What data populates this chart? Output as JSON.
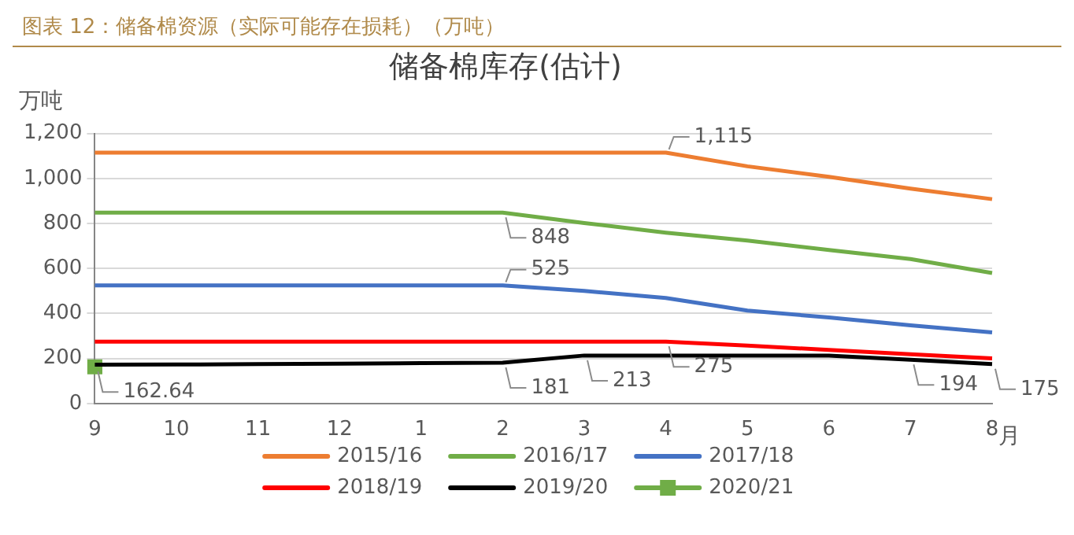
{
  "chart_data": {
    "type": "line",
    "title": "图表 12：储备棉资源（实际可能存在损耗）（万吨）",
    "subtitle": "储备棉库存(估计)",
    "xlabel": "月",
    "ylabel": "万吨",
    "categories": [
      "9",
      "10",
      "11",
      "12",
      "1",
      "2",
      "3",
      "4",
      "5",
      "6",
      "7",
      "8"
    ],
    "series": [
      {
        "name": "2015/16",
        "color": "#ed7d31",
        "values": [
          1115,
          1115,
          1115,
          1115,
          1115,
          1115,
          1115,
          1115,
          1054,
          1007,
          955,
          908
        ],
        "value_labels": [
          null,
          null,
          null,
          null,
          null,
          null,
          null,
          "1,115",
          null,
          null,
          null,
          null
        ]
      },
      {
        "name": "2016/17",
        "color": "#70ad47",
        "values": [
          848,
          848,
          848,
          848,
          848,
          848,
          802,
          759,
          724,
          682,
          642,
          580
        ],
        "value_labels": [
          null,
          null,
          null,
          null,
          null,
          "848",
          null,
          null,
          null,
          null,
          null,
          null
        ]
      },
      {
        "name": "2017/18",
        "color": "#4472c4",
        "values": [
          525,
          525,
          525,
          525,
          525,
          525,
          500,
          469,
          413,
          382,
          347,
          316
        ],
        "value_labels": [
          null,
          null,
          null,
          null,
          null,
          "525",
          null,
          null,
          null,
          null,
          null,
          null
        ]
      },
      {
        "name": "2018/19",
        "color": "#ff0000",
        "values": [
          275,
          275,
          275,
          275,
          275,
          275,
          275,
          275,
          257,
          238,
          219,
          200
        ],
        "value_labels": [
          null,
          null,
          null,
          null,
          null,
          null,
          null,
          "275",
          null,
          null,
          null,
          null
        ]
      },
      {
        "name": "2019/20",
        "color": "#000000",
        "values": [
          172,
          173,
          175,
          177,
          179,
          181,
          213,
          213,
          213,
          213,
          194,
          175
        ],
        "value_labels": [
          null,
          null,
          null,
          null,
          null,
          "181",
          "213",
          null,
          null,
          null,
          "194",
          "175"
        ]
      },
      {
        "name": "2020/21",
        "color": "#70ad47",
        "marker": "square",
        "values": [
          162.64,
          null,
          null,
          null,
          null,
          null,
          null,
          null,
          null,
          null,
          null,
          null
        ],
        "value_labels": [
          "162.64",
          null,
          null,
          null,
          null,
          null,
          null,
          null,
          null,
          null,
          null,
          null
        ]
      }
    ],
    "ylim": [
      0,
      1200
    ],
    "yticks": [
      0,
      {
        "value": 200,
        "label": "200"
      },
      {
        "value": 400,
        "label": "400"
      },
      {
        "value": 600,
        "label": "600"
      },
      {
        "value": 800,
        "label": "800"
      },
      {
        "value": 1000,
        "label": "1,000"
      },
      {
        "value": 1200,
        "label": "1,200"
      }
    ],
    "grid": "y",
    "legend": "bottom",
    "marker": "none",
    "line_style": "solid"
  }
}
